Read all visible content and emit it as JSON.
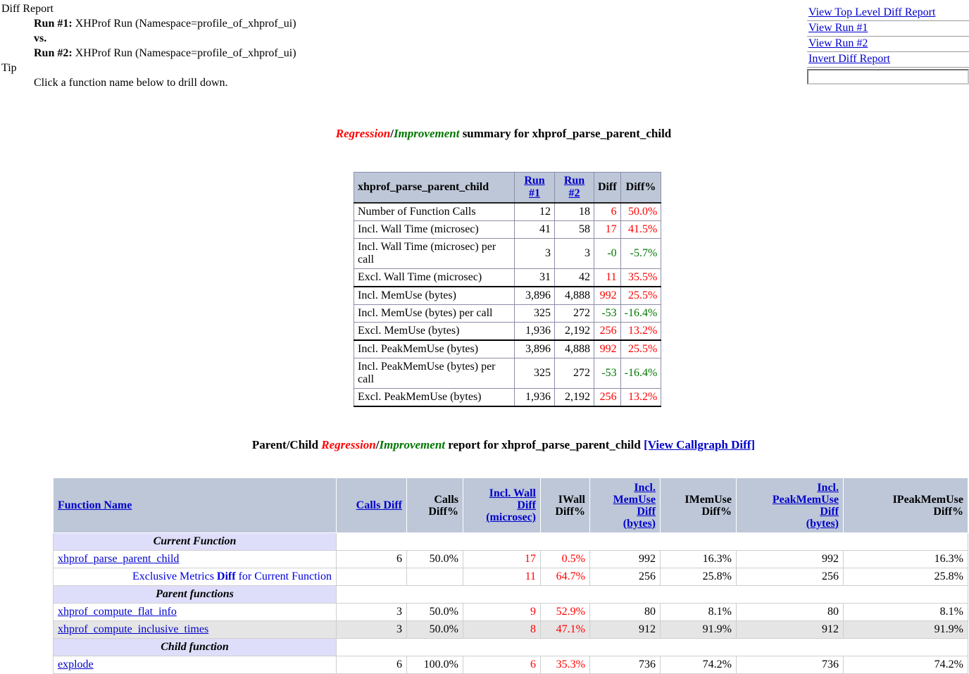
{
  "header": {
    "diff_report_label": "Diff Report",
    "run1_label": "Run #1:",
    "run1_value": "XHProf Run (Namespace=profile_of_xhprof_ui)",
    "vs_label": "vs.",
    "run2_label": "Run #2:",
    "run2_value": "XHProf Run (Namespace=profile_of_xhprof_ui)",
    "tip_label": "Tip",
    "tip_text": "Click a function name below to drill down."
  },
  "nav": {
    "links": [
      {
        "id": "view-top-level-diff-report",
        "label": "View Top Level Diff Report"
      },
      {
        "id": "view-run-1",
        "label": "View Run #1"
      },
      {
        "id": "view-run-2",
        "label": "View Run #2"
      },
      {
        "id": "invert-diff-report",
        "label": "Invert Diff Report"
      }
    ],
    "filter_input_value": ""
  },
  "summary_title": {
    "regression": "Regression",
    "slash": "/",
    "improvement": "Improvement",
    "rest": " summary for xhprof_parse_parent_child"
  },
  "summary_table": {
    "header": {
      "metric": "xhprof_parse_parent_child",
      "run1": "Run #1",
      "run2": "Run #2",
      "diff": "Diff",
      "diffpct": "Diff%"
    },
    "rows": [
      {
        "metric": "Number of Function Calls",
        "run1": "12",
        "run2": "18",
        "diff": "6",
        "diffpct": "50.0%",
        "dir": "red",
        "group_end": false
      },
      {
        "metric": "Incl. Wall Time (microsec)",
        "run1": "41",
        "run2": "58",
        "diff": "17",
        "diffpct": "41.5%",
        "dir": "red",
        "group_end": false
      },
      {
        "metric": "Incl. Wall Time (microsec) per call",
        "run1": "3",
        "run2": "3",
        "diff": "-0",
        "diffpct": "-5.7%",
        "dir": "green",
        "group_end": false
      },
      {
        "metric": "Excl. Wall Time (microsec)",
        "run1": "31",
        "run2": "42",
        "diff": "11",
        "diffpct": "35.5%",
        "dir": "red",
        "group_end": true
      },
      {
        "metric": "Incl. MemUse (bytes)",
        "run1": "3,896",
        "run2": "4,888",
        "diff": "992",
        "diffpct": "25.5%",
        "dir": "red",
        "group_end": false
      },
      {
        "metric": "Incl. MemUse (bytes) per call",
        "run1": "325",
        "run2": "272",
        "diff": "-53",
        "diffpct": "-16.4%",
        "dir": "green",
        "group_end": false
      },
      {
        "metric": "Excl. MemUse (bytes)",
        "run1": "1,936",
        "run2": "2,192",
        "diff": "256",
        "diffpct": "13.2%",
        "dir": "red",
        "group_end": true
      },
      {
        "metric": "Incl. PeakMemUse (bytes)",
        "run1": "3,896",
        "run2": "4,888",
        "diff": "992",
        "diffpct": "25.5%",
        "dir": "red",
        "group_end": false
      },
      {
        "metric": "Incl. PeakMemUse (bytes) per call",
        "run1": "325",
        "run2": "272",
        "diff": "-53",
        "diffpct": "-16.4%",
        "dir": "green",
        "group_end": false
      },
      {
        "metric": "Excl. PeakMemUse (bytes)",
        "run1": "1,936",
        "run2": "2,192",
        "diff": "256",
        "diffpct": "13.2%",
        "dir": "red",
        "group_end": true
      }
    ]
  },
  "report_title": {
    "prefix": "Parent/Child ",
    "regression": "Regression",
    "slash": "/",
    "improvement": "Improvement",
    "rest": " report for xhprof_parse_parent_child ",
    "callgraph_link": "[View Callgraph Diff]"
  },
  "report_table": {
    "columns": [
      {
        "id": "function-name",
        "lines": [
          "Function Name"
        ],
        "link": true,
        "align": "left"
      },
      {
        "id": "calls-diff",
        "lines": [
          "Calls Diff"
        ],
        "link": true,
        "align": "right"
      },
      {
        "id": "calls-diff-pct",
        "lines": [
          "Calls",
          "Diff%"
        ],
        "link": false,
        "align": "right"
      },
      {
        "id": "incl-wall-diff",
        "lines": [
          "Incl. Wall",
          "Diff",
          "(microsec)"
        ],
        "link": true,
        "align": "right"
      },
      {
        "id": "iwall-diff-pct",
        "lines": [
          "IWall",
          "Diff%"
        ],
        "link": false,
        "align": "right"
      },
      {
        "id": "incl-memuse-diff",
        "lines": [
          "Incl.",
          "MemUse",
          "Diff",
          "(bytes)"
        ],
        "link": true,
        "align": "right"
      },
      {
        "id": "imemuse-diff-pct",
        "lines": [
          "IMemUse",
          "Diff%"
        ],
        "link": false,
        "align": "right"
      },
      {
        "id": "incl-peakmemuse-diff",
        "lines": [
          "Incl.",
          "PeakMemUse",
          "Diff",
          "(bytes)"
        ],
        "link": true,
        "align": "right"
      },
      {
        "id": "ipeakmemuse-diff-pct",
        "lines": [
          "IPeakMemUse",
          "Diff%"
        ],
        "link": false,
        "align": "right"
      }
    ],
    "rows": [
      {
        "type": "banner",
        "label": "Current Function"
      },
      {
        "type": "data",
        "function": "xhprof_parse_parent_child",
        "cells": [
          {
            "v": "6",
            "color": "black"
          },
          {
            "v": "50.0%",
            "color": "black"
          },
          {
            "v": "17",
            "color": "red"
          },
          {
            "v": "0.5%",
            "color": "red"
          },
          {
            "v": "992",
            "color": "black"
          },
          {
            "v": "16.3%",
            "color": "black"
          },
          {
            "v": "992",
            "color": "black"
          },
          {
            "v": "16.3%",
            "color": "black"
          }
        ]
      },
      {
        "type": "note",
        "prefix": "Exclusive Metrics ",
        "bold": "Diff",
        "suffix": " for Current Function",
        "cells": [
          {
            "v": "",
            "color": "black"
          },
          {
            "v": "",
            "color": "black"
          },
          {
            "v": "11",
            "color": "red"
          },
          {
            "v": "64.7%",
            "color": "red"
          },
          {
            "v": "256",
            "color": "black"
          },
          {
            "v": "25.8%",
            "color": "black"
          },
          {
            "v": "256",
            "color": "black"
          },
          {
            "v": "25.8%",
            "color": "black"
          }
        ]
      },
      {
        "type": "banner",
        "label": "Parent functions"
      },
      {
        "type": "data",
        "function": "xhprof_compute_flat_info",
        "cells": [
          {
            "v": "3",
            "color": "black"
          },
          {
            "v": "50.0%",
            "color": "black"
          },
          {
            "v": "9",
            "color": "red"
          },
          {
            "v": "52.9%",
            "color": "red"
          },
          {
            "v": "80",
            "color": "black"
          },
          {
            "v": "8.1%",
            "color": "black"
          },
          {
            "v": "80",
            "color": "black"
          },
          {
            "v": "8.1%",
            "color": "black"
          }
        ]
      },
      {
        "type": "data",
        "function": "xhprof_compute_inclusive_times",
        "shade": true,
        "cells": [
          {
            "v": "3",
            "color": "black"
          },
          {
            "v": "50.0%",
            "color": "black"
          },
          {
            "v": "8",
            "color": "red"
          },
          {
            "v": "47.1%",
            "color": "red"
          },
          {
            "v": "912",
            "color": "black"
          },
          {
            "v": "91.9%",
            "color": "black"
          },
          {
            "v": "912",
            "color": "black"
          },
          {
            "v": "91.9%",
            "color": "black"
          }
        ]
      },
      {
        "type": "banner",
        "label": "Child function"
      },
      {
        "type": "data",
        "function": "explode",
        "cells": [
          {
            "v": "6",
            "color": "black"
          },
          {
            "v": "100.0%",
            "color": "black"
          },
          {
            "v": "6",
            "color": "red"
          },
          {
            "v": "35.3%",
            "color": "red"
          },
          {
            "v": "736",
            "color": "black"
          },
          {
            "v": "74.2%",
            "color": "black"
          },
          {
            "v": "736",
            "color": "black"
          },
          {
            "v": "74.2%",
            "color": "black"
          }
        ]
      }
    ]
  },
  "colors": {
    "regression_red": "#ff0000",
    "improvement_green": "#007700",
    "link_blue": "#0000cc",
    "table_header_bg": "#bdc7d8",
    "section_banner_bg": "#dedefa",
    "shaded_row_bg": "#e5e5e5"
  }
}
